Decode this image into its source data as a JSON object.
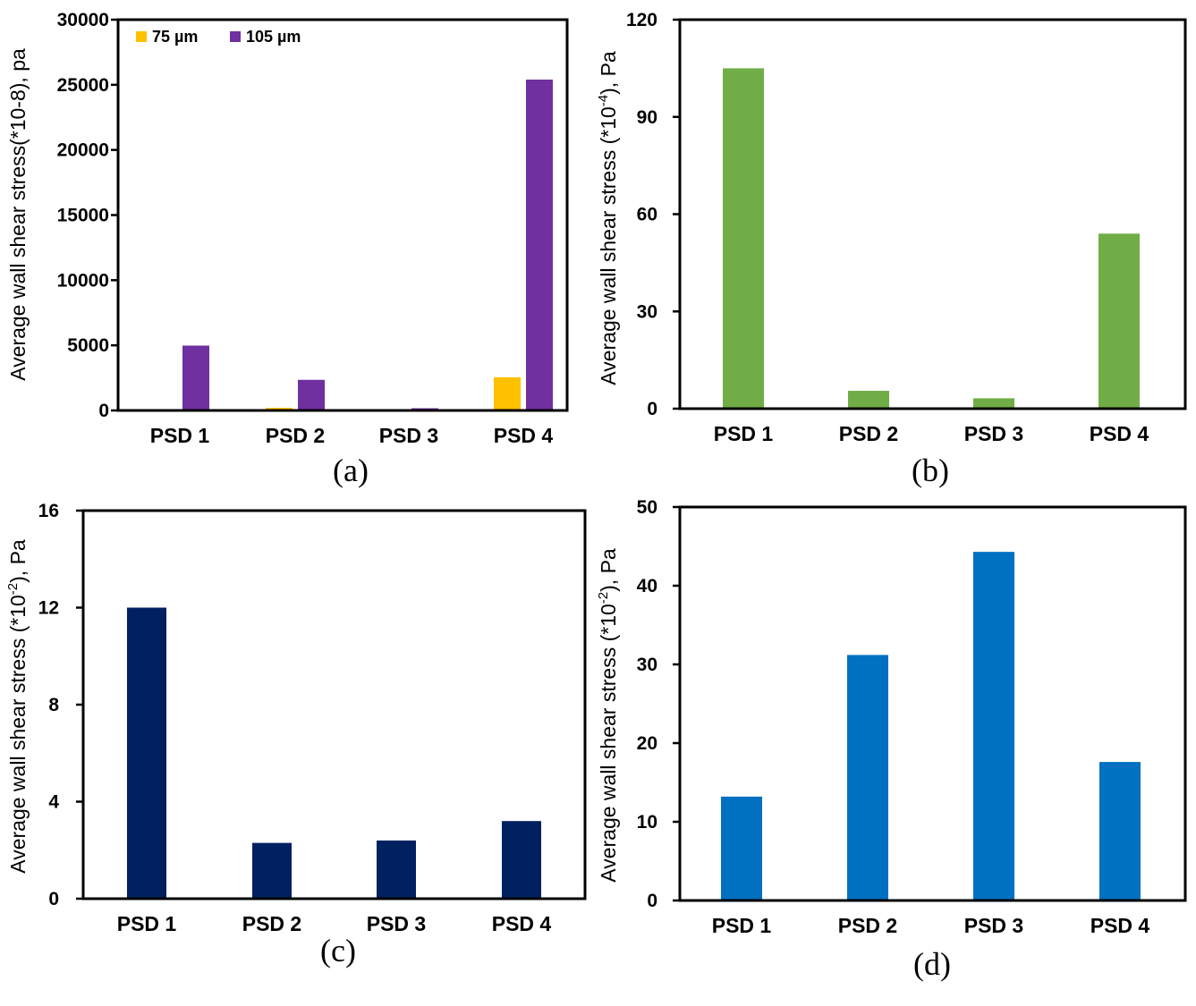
{
  "chart_data": [
    {
      "type": "bar",
      "panel_label": "(a)",
      "categories": [
        "PSD 1",
        "PSD 2",
        "PSD 3",
        "PSD 4"
      ],
      "series": [
        {
          "name": "75 µm",
          "color": "#FFC000",
          "values": [
            0,
            200,
            30,
            2550
          ]
        },
        {
          "name": "105 µm",
          "color": "#7030A0",
          "values": [
            4980,
            2350,
            170,
            25400
          ]
        }
      ],
      "ylabel": "Average wall shear stress(*10-8), pa",
      "ylim": [
        0,
        30000
      ],
      "yticks": [
        "0",
        "5000",
        "10000",
        "15000",
        "20000",
        "25000",
        "30000"
      ],
      "legend": "top-left"
    },
    {
      "type": "bar",
      "panel_label": "(b)",
      "categories": [
        "PSD 1",
        "PSD 2",
        "PSD 3",
        "PSD 4"
      ],
      "series": [
        {
          "name": "",
          "color": "#70AD47",
          "values": [
            105,
            5.5,
            3.2,
            54
          ]
        }
      ],
      "ylabel_main": "Average wall shear stress (*10",
      "ylabel_sup": "-4",
      "ylabel_end": "), Pa",
      "ylim": [
        0,
        120
      ],
      "yticks": [
        "0",
        "30",
        "60",
        "90",
        "120"
      ]
    },
    {
      "type": "bar",
      "panel_label": "(c)",
      "categories": [
        "PSD 1",
        "PSD 2",
        "PSD 3",
        "PSD 4"
      ],
      "series": [
        {
          "name": "",
          "color": "#002060",
          "values": [
            12,
            2.3,
            2.4,
            3.2
          ]
        }
      ],
      "ylabel_main": "Average wall shear stress (*10",
      "ylabel_sup": "-2",
      "ylabel_end": "), Pa",
      "ylim": [
        0,
        16
      ],
      "yticks": [
        "0",
        "4",
        "8",
        "12",
        "16"
      ]
    },
    {
      "type": "bar",
      "panel_label": "(d)",
      "categories": [
        "PSD 1",
        "PSD 2",
        "PSD 3",
        "PSD 4"
      ],
      "series": [
        {
          "name": "",
          "color": "#0070C0",
          "values": [
            13.2,
            31.2,
            44.3,
            17.6
          ]
        }
      ],
      "ylabel_main": "Average wall shear stress (*10",
      "ylabel_sup": "-2",
      "ylabel_end": "), Pa",
      "ylim": [
        0,
        50
      ],
      "yticks": [
        "0",
        "10",
        "20",
        "30",
        "40",
        "50"
      ]
    }
  ]
}
